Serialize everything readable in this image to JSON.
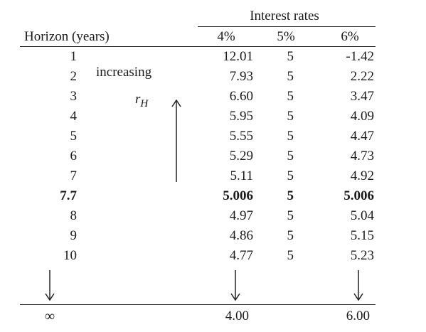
{
  "header": {
    "group_label": "Interest rates",
    "horizon_label": "Horizon (years)",
    "rate_cols": [
      "4%",
      "5%",
      "6%"
    ]
  },
  "annotations": {
    "increasing": "increasing",
    "r_symbol": "r",
    "r_subscript": "H"
  },
  "rows": [
    {
      "h": "1",
      "r4": "12.01",
      "r5": "5",
      "r6": "-1.42",
      "bold": false
    },
    {
      "h": "2",
      "r4": "7.93",
      "r5": "5",
      "r6": "2.22",
      "bold": false
    },
    {
      "h": "3",
      "r4": "6.60",
      "r5": "5",
      "r6": "3.47",
      "bold": false
    },
    {
      "h": "4",
      "r4": "5.95",
      "r5": "5",
      "r6": "4.09",
      "bold": false
    },
    {
      "h": "5",
      "r4": "5.55",
      "r5": "5",
      "r6": "4.47",
      "bold": false
    },
    {
      "h": "6",
      "r4": "5.29",
      "r5": "5",
      "r6": "4.73",
      "bold": false
    },
    {
      "h": "7",
      "r4": "5.11",
      "r5": "5",
      "r6": "4.92",
      "bold": false
    },
    {
      "h": "7.7",
      "r4": "5.006",
      "r5": "5",
      "r6": "5.006",
      "bold": true
    },
    {
      "h": "8",
      "r4": "4.97",
      "r5": "5",
      "r6": "5.04",
      "bold": false
    },
    {
      "h": "9",
      "r4": "4.86",
      "r5": "5",
      "r6": "5.15",
      "bold": false
    },
    {
      "h": "10",
      "r4": "4.77",
      "r5": "5",
      "r6": "5.23",
      "bold": false
    }
  ],
  "limit_row": {
    "h": "∞",
    "r4": "4.00",
    "r6": "6.00"
  }
}
